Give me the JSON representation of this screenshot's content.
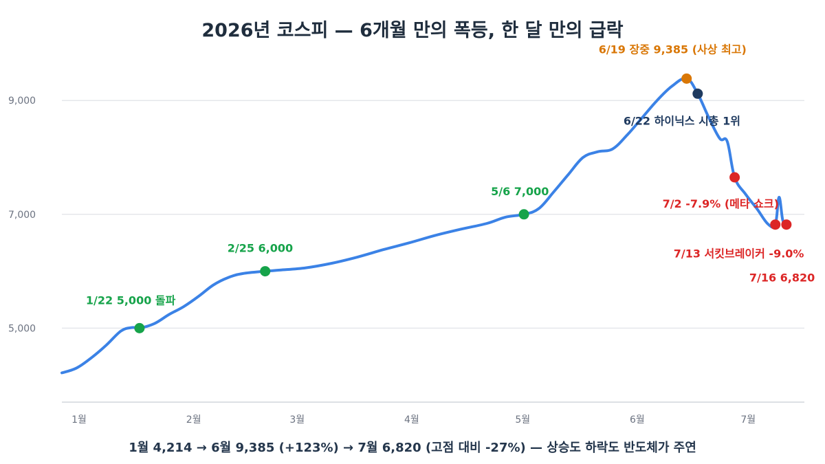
{
  "chart_data": {
    "type": "line",
    "title": "2026년 코스피 — 6개월 만의 폭등, 한 달 만의 급락",
    "footer": "1월 4,214 → 6월 9,385 (+123%) → 7월 6,820 (고점 대비 -27%) — 상승도 하락도 반도체가 주연",
    "xlabel": "",
    "ylabel": "",
    "x_ticks": [
      "1월",
      "2월",
      "3월",
      "4월",
      "5월",
      "6월",
      "7월"
    ],
    "y_ticks": [
      5000,
      7000,
      9000
    ],
    "y_tick_labels": [
      "5,000",
      "7,000",
      "9,000"
    ],
    "ylim": [
      3700,
      9800
    ],
    "grid": true,
    "legend": "none",
    "colors": {
      "line": "#3b82e6",
      "milestone": "#16a34a",
      "peak": "#d97706",
      "event": "#1f3a5f",
      "drop": "#dc2626",
      "grid": "#e5e7eb"
    },
    "series": [
      {
        "points": [
          [
            "1/1",
            4214
          ],
          [
            "1/5",
            4300
          ],
          [
            "1/9",
            4480
          ],
          [
            "1/13",
            4700
          ],
          [
            "1/17",
            4950
          ],
          [
            "1/20",
            5010
          ],
          [
            "1/22",
            5000
          ],
          [
            "1/26",
            5080
          ],
          [
            "1/30",
            5240
          ],
          [
            "2/3",
            5380
          ],
          [
            "2/7",
            5560
          ],
          [
            "2/11",
            5760
          ],
          [
            "2/15",
            5890
          ],
          [
            "2/19",
            5960
          ],
          [
            "2/25",
            6000
          ],
          [
            "3/1",
            6020
          ],
          [
            "3/8",
            6060
          ],
          [
            "3/15",
            6140
          ],
          [
            "3/22",
            6250
          ],
          [
            "3/29",
            6380
          ],
          [
            "4/5",
            6500
          ],
          [
            "4/12",
            6630
          ],
          [
            "4/19",
            6740
          ],
          [
            "4/26",
            6840
          ],
          [
            "5/1",
            6950
          ],
          [
            "5/6",
            7000
          ],
          [
            "5/10",
            7100
          ],
          [
            "5/14",
            7390
          ],
          [
            "5/18",
            7700
          ],
          [
            "5/22",
            8000
          ],
          [
            "5/26",
            8100
          ],
          [
            "5/30",
            8150
          ],
          [
            "6/3",
            8400
          ],
          [
            "6/7",
            8700
          ],
          [
            "6/11",
            9000
          ],
          [
            "6/15",
            9250
          ],
          [
            "6/19",
            9385
          ],
          [
            "6/22",
            9120
          ],
          [
            "6/25",
            8700
          ],
          [
            "6/28",
            8330
          ],
          [
            "6/30",
            8280
          ],
          [
            "7/2",
            7650
          ],
          [
            "7/5",
            7350
          ],
          [
            "7/8",
            7100
          ],
          [
            "7/11",
            6830
          ],
          [
            "7/13",
            6820
          ],
          [
            "7/14",
            7300
          ],
          [
            "7/15",
            6900
          ],
          [
            "7/16",
            6820
          ]
        ]
      }
    ],
    "markers": [
      {
        "date": "1/22",
        "value": 5000,
        "kind": "milestone",
        "label": "1/22  5,000 돌파"
      },
      {
        "date": "2/25",
        "value": 6000,
        "kind": "milestone",
        "label": "2/25  6,000"
      },
      {
        "date": "5/6",
        "value": 7000,
        "kind": "milestone",
        "label": "5/6  7,000"
      },
      {
        "date": "6/19",
        "value": 9385,
        "kind": "peak",
        "label": "6/19 장중 9,385 (사상 최고)"
      },
      {
        "date": "6/22",
        "value": 9120,
        "kind": "event",
        "label": "6/22 하이닉스 시총 1위"
      },
      {
        "date": "7/2",
        "value": 7650,
        "kind": "drop",
        "label": "7/2  -7.9% (메타 쇼크)"
      },
      {
        "date": "7/13",
        "value": 6820,
        "kind": "drop",
        "label": "7/13 서킷브레이커 -9.0%"
      },
      {
        "date": "7/16",
        "value": 6820,
        "kind": "drop",
        "label": "7/16  6,820"
      }
    ]
  }
}
